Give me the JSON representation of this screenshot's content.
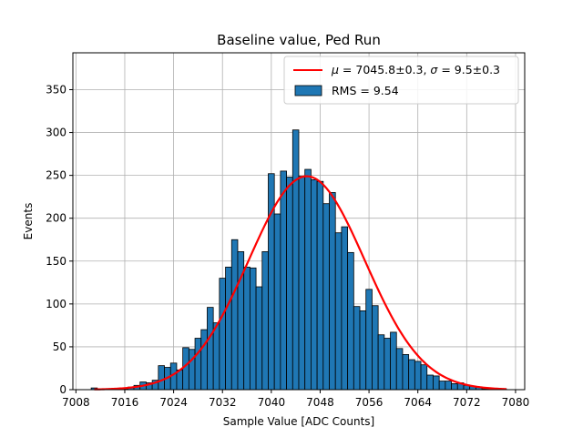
{
  "chart_data": {
    "type": "bar",
    "title": "Baseline value, Ped Run",
    "xlabel": "Sample Value [ADC Counts]",
    "ylabel": "Events",
    "xlim": [
      7007.5,
      7081.5
    ],
    "ylim": [
      0,
      393
    ],
    "xticks": [
      7008,
      7016,
      7024,
      7032,
      7040,
      7048,
      7056,
      7064,
      7072,
      7080
    ],
    "yticks": [
      0,
      50,
      100,
      150,
      200,
      250,
      300,
      350
    ],
    "grid": true,
    "legend_position": "top-right",
    "histogram": {
      "name": "RMS = 9.54",
      "color": "#1f77b4",
      "bin_width": 1,
      "bin_centers": [
        7011,
        7012,
        7013,
        7014,
        7015,
        7016,
        7017,
        7018,
        7019,
        7020,
        7021,
        7022,
        7023,
        7024,
        7025,
        7026,
        7027,
        7028,
        7029,
        7030,
        7031,
        7032,
        7033,
        7034,
        7035,
        7036,
        7037,
        7038,
        7039,
        7040,
        7041,
        7042,
        7043,
        7044,
        7045,
        7046,
        7047,
        7048,
        7049,
        7050,
        7051,
        7052,
        7053,
        7054,
        7055,
        7056,
        7057,
        7058,
        7059,
        7060,
        7061,
        7062,
        7063,
        7064,
        7065,
        7066,
        7067,
        7068,
        7069,
        7070,
        7071,
        7072,
        7073,
        7074,
        7075,
        7076,
        7077,
        7078
      ],
      "counts": [
        2,
        1,
        1,
        1,
        1,
        1,
        3,
        5,
        9,
        8,
        11,
        28,
        26,
        31,
        23,
        49,
        47,
        60,
        70,
        96,
        78,
        130,
        143,
        175,
        161,
        143,
        142,
        120,
        161,
        252,
        205,
        255,
        248,
        303,
        249,
        257,
        245,
        243,
        217,
        230,
        183,
        190,
        160,
        97,
        92,
        117,
        98,
        64,
        60,
        67,
        48,
        41,
        35,
        33,
        29,
        17,
        16,
        10,
        10,
        7,
        8,
        5,
        4,
        3,
        1,
        1,
        1,
        1
      ]
    },
    "fit": {
      "name": "$\\mu = 7045.8{\\pm}0.3, \\sigma = 9.5{\\pm}0.3$",
      "name_display": {
        "mu": "μ",
        "equals": " = 7045.8±0.3, ",
        "sigma": "σ",
        "equals2": " = 9.5±0.3"
      },
      "color": "#ff0000",
      "mu": 7045.8,
      "sigma": 9.5,
      "amplitude": 249,
      "x_range": [
        7011,
        7078.5
      ]
    },
    "legend": {
      "fit_label": "μ = 7045.8±0.3, σ = 9.5±0.3",
      "hist_label": "RMS = 9.54"
    }
  }
}
